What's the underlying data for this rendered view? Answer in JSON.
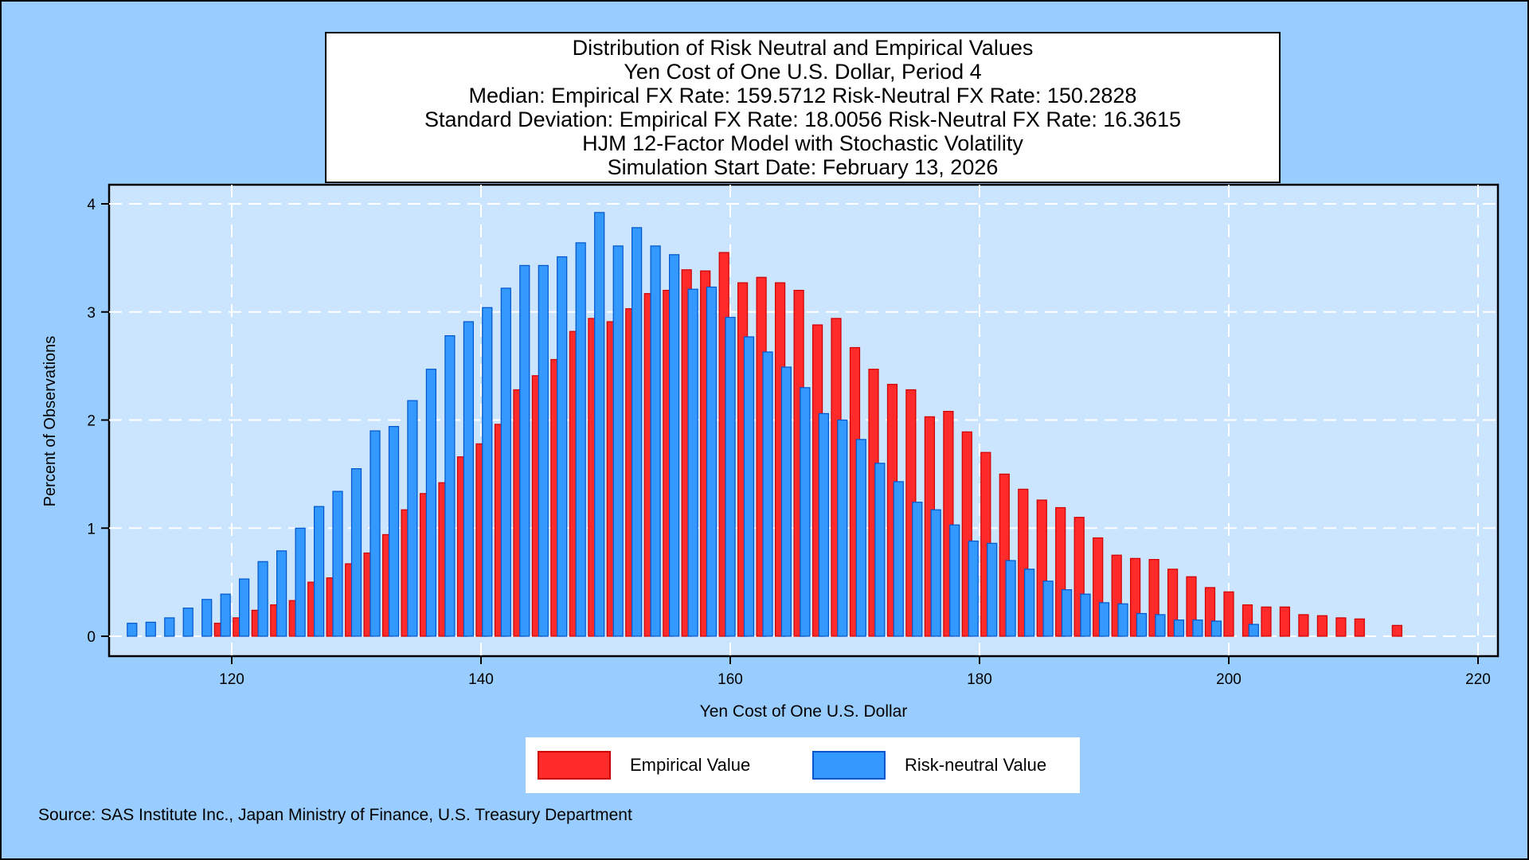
{
  "chart_data": {
    "type": "bar",
    "title": [
      "Distribution of Risk Neutral and Empirical Values",
      "Yen Cost of One U.S. Dollar, Period 4",
      "Median: Empirical FX Rate: 159.5712   Risk-Neutral FX Rate: 150.2828",
      "Standard Deviation: Empirical FX Rate: 18.0056   Risk-Neutral FX Rate: 16.3615",
      "HJM 12-Factor Model with Stochastic Volatility",
      "Simulation Start Date: February 13, 2026"
    ],
    "xlabel": "Yen Cost of One U.S. Dollar",
    "ylabel": "Percent of Observations",
    "xlim": [
      110,
      222
    ],
    "ylim": [
      0,
      4.2
    ],
    "xticks": [
      120,
      140,
      160,
      180,
      200,
      220
    ],
    "yticks": [
      0,
      1,
      2,
      3,
      4
    ],
    "grid": true,
    "legend_position": "bottom",
    "series": [
      {
        "name": "Empirical Value",
        "color": "#FF2A2A",
        "edge": "#D00000",
        "x": [
          119,
          120.5,
          122,
          123.5,
          125,
          126.5,
          128,
          129.5,
          131,
          132.5,
          134,
          135.5,
          137,
          138.5,
          140,
          141.5,
          143,
          144.5,
          146,
          147.5,
          149,
          150.5,
          152,
          153.5,
          155,
          156.5,
          158,
          159.5,
          161,
          162.5,
          164,
          165.5,
          167,
          168.5,
          170,
          171.5,
          173,
          174.5,
          176,
          177.5,
          179,
          180.5,
          182,
          183.5,
          185,
          186.5,
          188,
          189.5,
          191,
          192.5,
          194,
          195.5,
          197,
          198.5,
          200,
          201.5,
          203,
          204.5,
          206,
          207.5,
          209,
          210.5,
          213.5
        ],
        "values": [
          0.12,
          0.17,
          0.24,
          0.29,
          0.33,
          0.5,
          0.54,
          0.67,
          0.77,
          0.94,
          1.17,
          1.32,
          1.42,
          1.66,
          1.78,
          1.96,
          2.28,
          2.41,
          2.56,
          2.82,
          2.94,
          2.91,
          3.03,
          3.17,
          3.2,
          3.39,
          3.38,
          3.55,
          3.27,
          3.32,
          3.27,
          3.2,
          2.88,
          2.94,
          2.67,
          2.47,
          2.33,
          2.28,
          2.03,
          2.08,
          1.89,
          1.7,
          1.5,
          1.36,
          1.26,
          1.19,
          1.1,
          0.91,
          0.75,
          0.72,
          0.71,
          0.62,
          0.55,
          0.45,
          0.41,
          0.29,
          0.27,
          0.27,
          0.2,
          0.19,
          0.17,
          0.16,
          0.1
        ]
      },
      {
        "name": "Risk-neutral Value",
        "color": "#3399FF",
        "edge": "#0055CC",
        "x": [
          112,
          113.5,
          115,
          116.5,
          118,
          119.5,
          121,
          122.5,
          124,
          125.5,
          127,
          128.5,
          130,
          131.5,
          133,
          134.5,
          136,
          137.5,
          139,
          140.5,
          142,
          143.5,
          145,
          146.5,
          148,
          149.5,
          151,
          152.5,
          154,
          155.5,
          157,
          158.5,
          160,
          161.5,
          163,
          164.5,
          166,
          167.5,
          169,
          170.5,
          172,
          173.5,
          175,
          176.5,
          178,
          179.5,
          181,
          182.5,
          184,
          185.5,
          187,
          188.5,
          190,
          191.5,
          193,
          194.5,
          196,
          197.5,
          199,
          202
        ],
        "values": [
          0.12,
          0.13,
          0.17,
          0.26,
          0.34,
          0.39,
          0.53,
          0.69,
          0.79,
          1.0,
          1.2,
          1.34,
          1.55,
          1.9,
          1.94,
          2.18,
          2.47,
          2.78,
          2.91,
          3.04,
          3.22,
          3.43,
          3.43,
          3.51,
          3.64,
          3.92,
          3.61,
          3.78,
          3.61,
          3.53,
          3.21,
          3.23,
          2.95,
          2.77,
          2.63,
          2.49,
          2.3,
          2.06,
          2.0,
          1.82,
          1.6,
          1.43,
          1.24,
          1.17,
          1.03,
          0.88,
          0.86,
          0.7,
          0.62,
          0.51,
          0.43,
          0.39,
          0.31,
          0.3,
          0.21,
          0.2,
          0.15,
          0.15,
          0.14,
          0.11
        ]
      }
    ]
  },
  "source": "Source: SAS Institute Inc., Japan Ministry of Finance, U.S. Treasury Department",
  "colors": {
    "page_background": "#99CCFF",
    "plot_background": "#CCE5FF",
    "grid": "#FFFFFF"
  }
}
